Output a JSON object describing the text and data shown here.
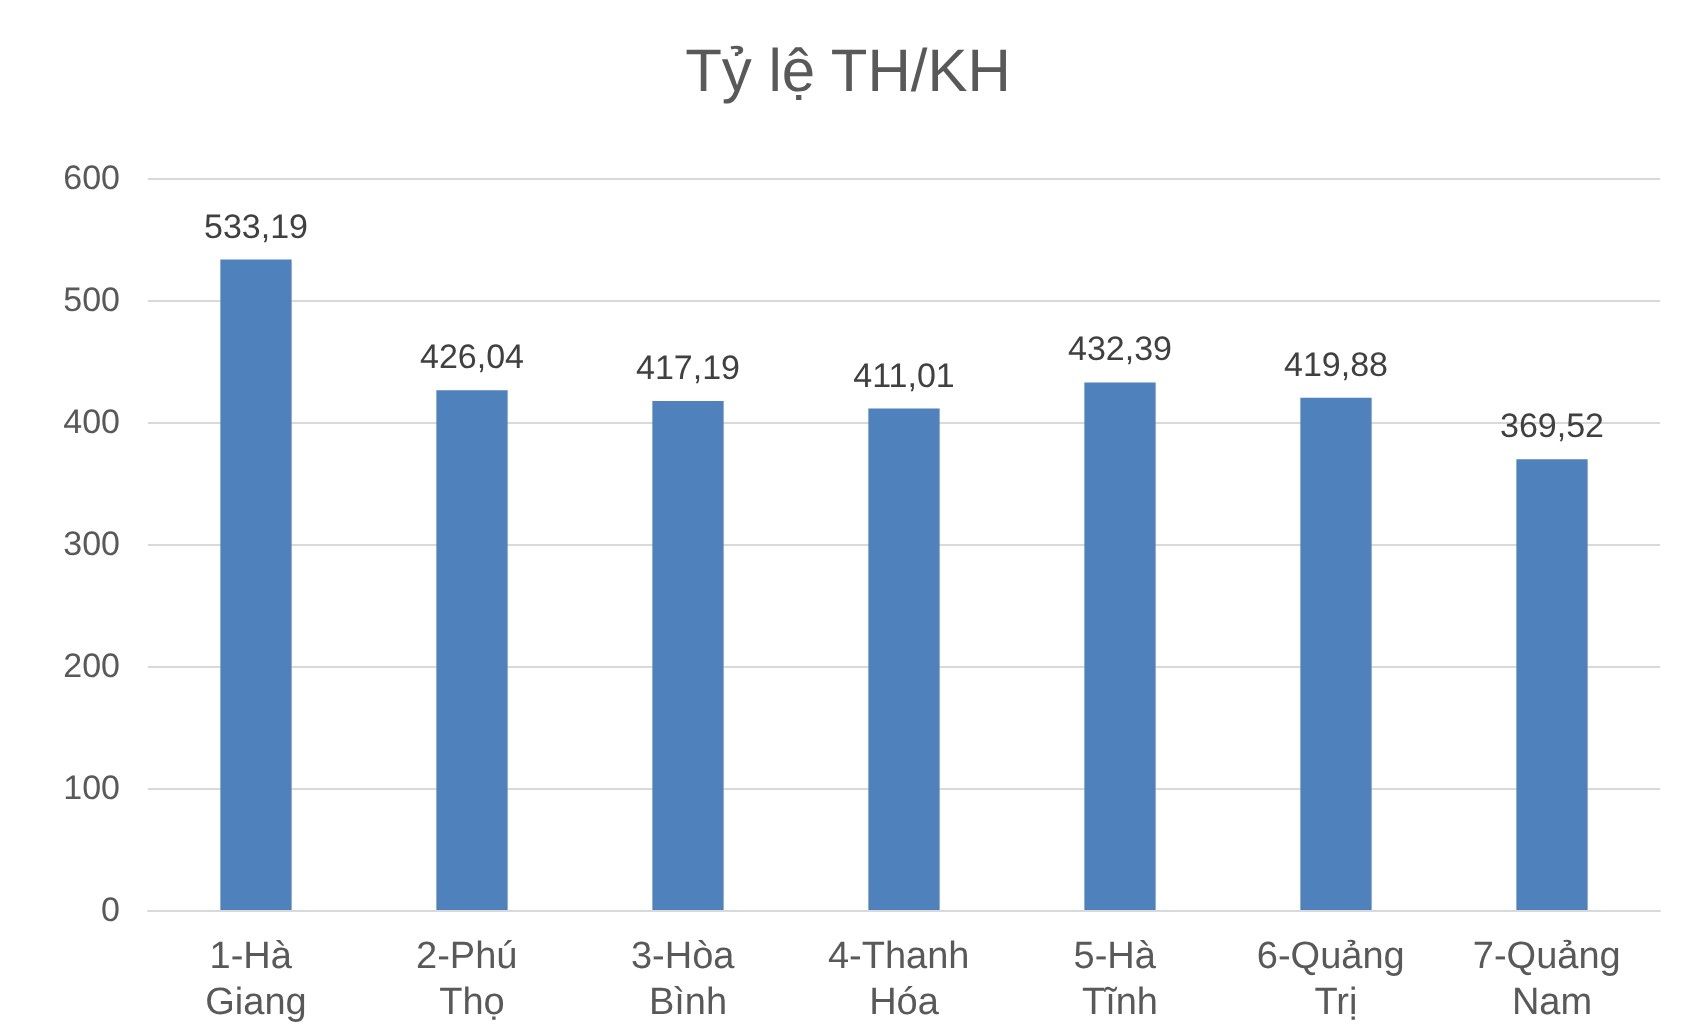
{
  "chart_data": {
    "type": "bar",
    "title": "Tỷ lệ TH/KH",
    "categories": [
      "1-Hà Giang",
      "2-Phú Thọ",
      "3-Hòa Bình",
      "4-Thanh Hóa",
      "5-Hà Tĩnh",
      "6-Quảng Trị",
      "7-Quảng Nam"
    ],
    "values": [
      533.19,
      426.04,
      417.19,
      411.01,
      432.39,
      419.88,
      369.52
    ],
    "value_labels": [
      "533,19",
      "426,04",
      "417,19",
      "411,01",
      "432,39",
      "419,88",
      "369,52"
    ],
    "color": "#4f81bd",
    "ylim": [
      0,
      600
    ],
    "yticks": [
      0,
      100,
      200,
      300,
      400,
      500,
      600
    ],
    "grid": "y"
  }
}
